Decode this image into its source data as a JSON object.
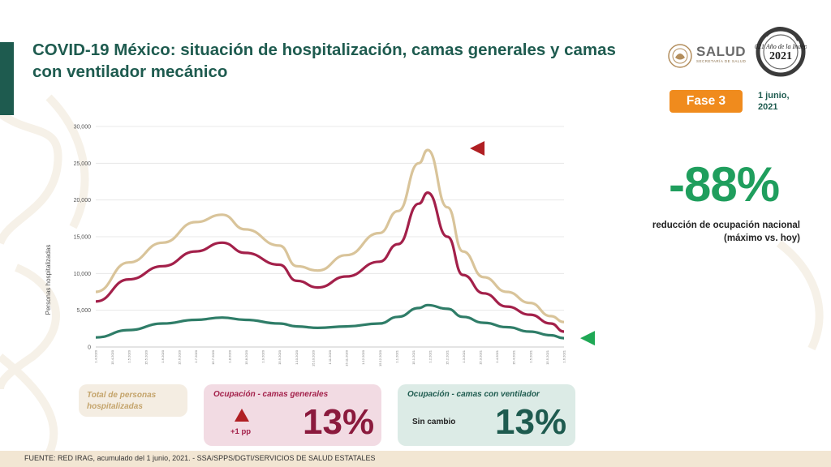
{
  "slide": {
    "title": "COVID-19 México: situación de hospitalización, camas generales y camas con ventilador mecánico",
    "salud_logo": "SALUD",
    "salud_subtitle": "SECRETARÍA DE SALUD",
    "emblem_icon": "mexico-2021-emblem-icon",
    "emblem_text": "México 2021 Año de la Independencia",
    "phase_badge": "Fase 3",
    "date_line1": "1 junio,",
    "date_line2": "2021"
  },
  "headline": {
    "value": "-88%",
    "desc_line1": "reducción de ocupación nacional",
    "desc_line2": "(máximo vs. hoy)"
  },
  "cards": {
    "total_label_1": "Total de personas",
    "total_label_2": "hospitalizadas",
    "general_label": "Ocupación - camas generales",
    "general_change": "+1 pp",
    "general_pct": "13%",
    "vent_label": "Ocupación - camas con ventilador",
    "vent_state": "Sin cambio",
    "vent_pct": "13%"
  },
  "footer": {
    "source": "FUENTE: RED IRAG, acumulado del 1 junio, 2021. -  SSA/SPPS/DGTI/SERVICIOS DE SALUD ESTATALES"
  },
  "colors": {
    "total": "#d9c49a",
    "general": "#a3204a",
    "vent": "#2f7d68",
    "marker_general": "#b01f23",
    "marker_vent": "#1fa855"
  },
  "chart_data": {
    "type": "line",
    "ylabel": "Personas hospitalizadas",
    "ylim": [
      0,
      30000
    ],
    "yticks": [
      0,
      5000,
      10000,
      15000,
      20000,
      25000,
      30000
    ],
    "ytick_labels": [
      "0",
      "5,000",
      "10,000",
      "15,000",
      "20,000",
      "25,000",
      "30,000"
    ],
    "xlim": [
      "2020-04-01",
      "2021-06-01"
    ],
    "x": [
      "2020-04-01",
      "2020-05-01",
      "2020-06-01",
      "2020-07-01",
      "2020-07-25",
      "2020-08-15",
      "2020-09-15",
      "2020-10-01",
      "2020-10-20",
      "2020-11-15",
      "2020-12-15",
      "2021-01-01",
      "2021-01-20",
      "2021-01-28",
      "2021-02-15",
      "2021-03-01",
      "2021-03-20",
      "2021-04-10",
      "2021-05-01",
      "2021-05-20",
      "2021-06-01"
    ],
    "series": [
      {
        "name": "",
        "values": [
          7500,
          11500,
          14200,
          17000,
          18000,
          16000,
          13800,
          11000,
          10400,
          12500,
          15500,
          18500,
          25000,
          26800,
          19000,
          13000,
          9500,
          7500,
          6000,
          4200,
          3400
        ]
      },
      {
        "name": "",
        "values": [
          6200,
          9200,
          11000,
          13000,
          14200,
          12800,
          11200,
          9000,
          8100,
          9600,
          11600,
          14000,
          19500,
          21000,
          15000,
          9800,
          7300,
          5500,
          4400,
          3200,
          2100
        ]
      },
      {
        "name": "",
        "values": [
          1300,
          2300,
          3200,
          3700,
          4000,
          3700,
          3200,
          2800,
          2600,
          2800,
          3200,
          4100,
          5300,
          5700,
          5200,
          4100,
          3300,
          2700,
          2100,
          1600,
          1200
        ]
      }
    ],
    "xtick_labels": [
      "1.4.2020",
      "15.4.2020",
      "1.5.2020",
      "15.5.2020",
      "1.6.2020",
      "15.6.2020",
      "1.7.2020",
      "15.7.2020",
      "1.8.2020",
      "15.8.2020",
      "1.9.2020",
      "15.9.2020",
      "1.10.2020",
      "15.10.2020",
      "1.11.2020",
      "15.11.2020",
      "1.12.2020",
      "15.12.2020",
      "1.1.2021",
      "15.1.2021",
      "1.2.2021",
      "15.2.2021",
      "1.3.2021",
      "15.3.2021",
      "1.4.2021",
      "15.4.2021",
      "1.5.2021",
      "15.5.2021",
      "1.6.2021"
    ],
    "grid": "horizontal",
    "markers": [
      {
        "shape": "left-triangle",
        "series_index": 1,
        "color": "#b01f23"
      },
      {
        "shape": "left-triangle",
        "series_index": 2,
        "color": "#1fa855"
      }
    ]
  }
}
